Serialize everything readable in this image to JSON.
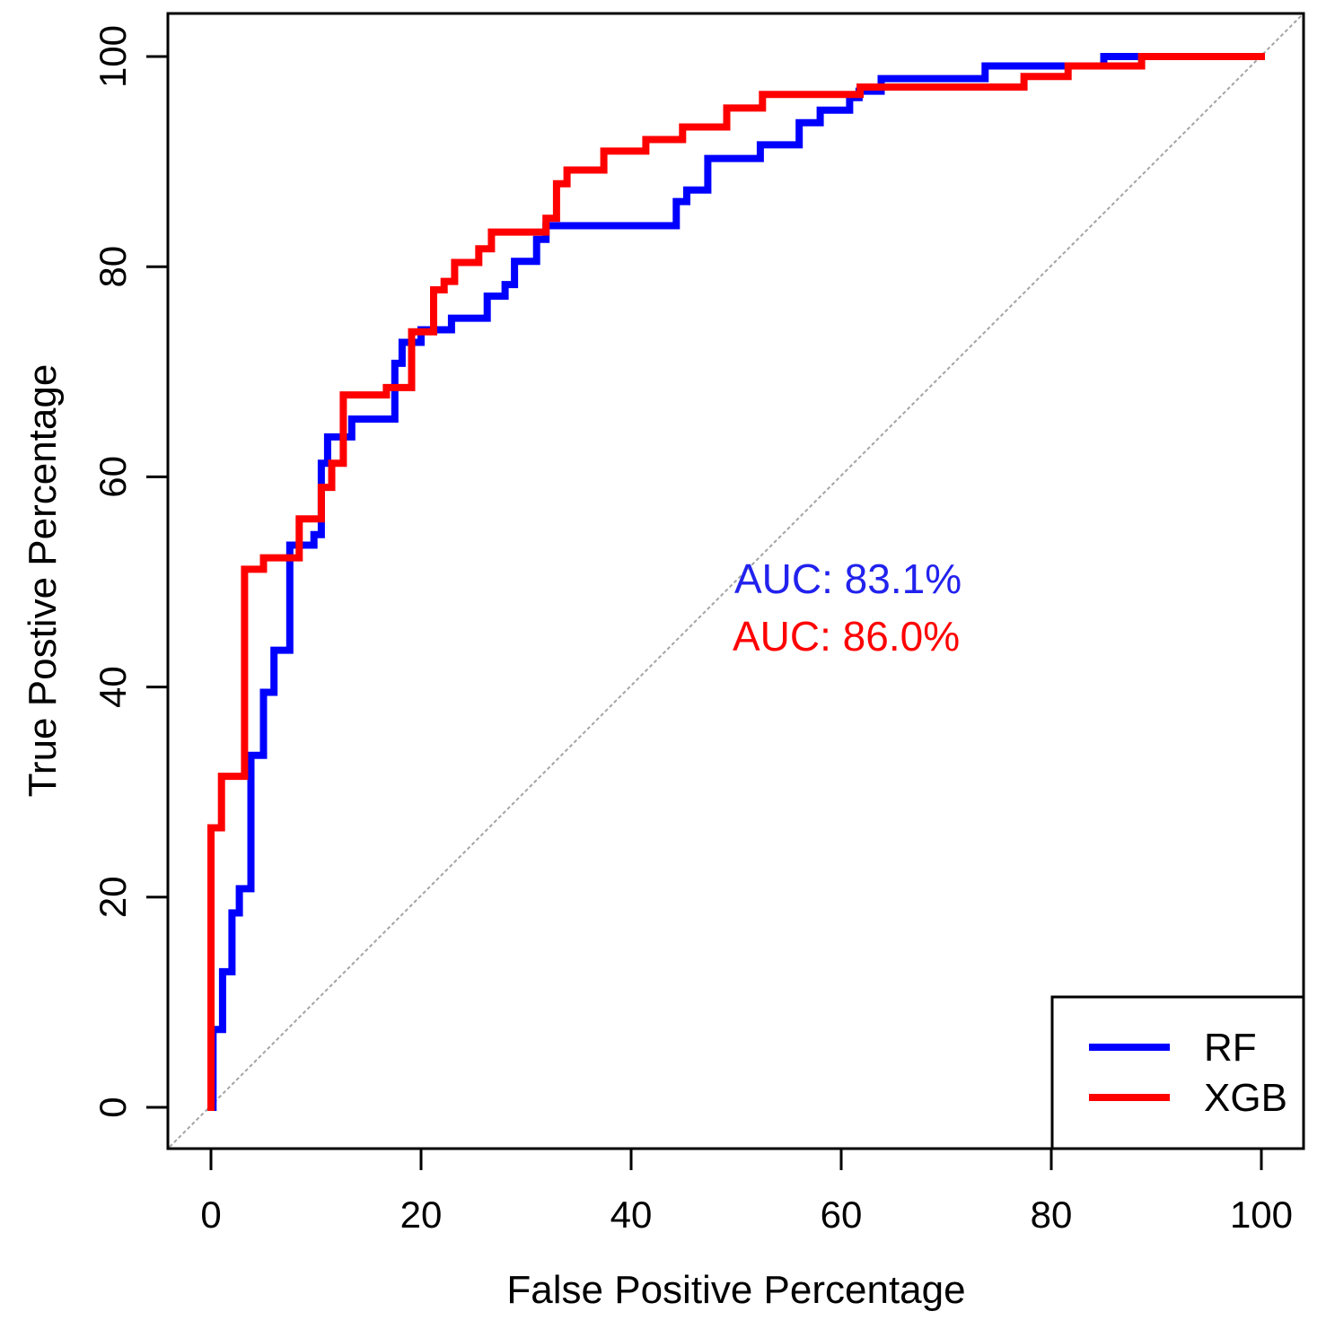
{
  "chart_data": {
    "type": "line",
    "subtype": "roc-step-curves",
    "title": "",
    "xlabel": "False Positive Percentage",
    "ylabel": "True Postive Percentage",
    "xlim": [
      0,
      100
    ],
    "ylim": [
      0,
      100
    ],
    "grid": false,
    "x_ticks": [
      0,
      20,
      40,
      60,
      80,
      100
    ],
    "y_ticks": [
      0,
      20,
      40,
      60,
      80,
      100
    ],
    "diagonal_reference": {
      "from": [
        0,
        0
      ],
      "to": [
        100,
        100
      ],
      "color": "#a3a3a3"
    },
    "annotations": [
      {
        "text": "AUC: 83.1%",
        "series": "RF",
        "color": "#2222ee",
        "x": 50,
        "y": 49
      },
      {
        "text": "AUC: 86.0%",
        "series": "XGB",
        "color": "#ff0000",
        "x": 50,
        "y": 44
      }
    ],
    "legend": {
      "position": "bottom-right",
      "entries": [
        {
          "label": "RF",
          "color": "#0000ff"
        },
        {
          "label": "XGB",
          "color": "#ff0000"
        }
      ]
    },
    "series": [
      {
        "name": "RF",
        "color": "#0000ff",
        "auc_percent": 83.1,
        "points": [
          [
            0.2,
            0
          ],
          [
            0.2,
            7.4
          ],
          [
            1.1,
            7.4
          ],
          [
            1.1,
            12.9
          ],
          [
            2,
            12.9
          ],
          [
            2,
            18.5
          ],
          [
            2.7,
            18.5
          ],
          [
            2.7,
            20.8
          ],
          [
            3.8,
            20.8
          ],
          [
            3.8,
            33.5
          ],
          [
            5,
            33.5
          ],
          [
            5,
            39.5
          ],
          [
            6,
            39.5
          ],
          [
            6,
            43.5
          ],
          [
            7.5,
            43.5
          ],
          [
            7.5,
            53.5
          ],
          [
            9.8,
            53.5
          ],
          [
            9.8,
            54.5
          ],
          [
            10.5,
            54.5
          ],
          [
            10.5,
            61.3
          ],
          [
            11.1,
            61.3
          ],
          [
            11.1,
            63.8
          ],
          [
            13.4,
            63.8
          ],
          [
            13.4,
            65.5
          ],
          [
            17.5,
            65.5
          ],
          [
            17.5,
            70.8
          ],
          [
            18.2,
            70.8
          ],
          [
            18.2,
            72.8
          ],
          [
            20,
            72.8
          ],
          [
            20,
            74
          ],
          [
            22.9,
            74
          ],
          [
            22.9,
            75.1
          ],
          [
            26.3,
            75.1
          ],
          [
            26.3,
            77.2
          ],
          [
            28,
            77.2
          ],
          [
            28,
            78.3
          ],
          [
            28.9,
            78.3
          ],
          [
            28.9,
            80.5
          ],
          [
            31,
            80.5
          ],
          [
            31,
            82.6
          ],
          [
            31.9,
            82.6
          ],
          [
            31.9,
            83.9
          ],
          [
            44.3,
            83.9
          ],
          [
            44.3,
            86.2
          ],
          [
            45.3,
            86.2
          ],
          [
            45.3,
            87.3
          ],
          [
            47.3,
            87.3
          ],
          [
            47.3,
            90.3
          ],
          [
            52.3,
            90.3
          ],
          [
            52.3,
            91.6
          ],
          [
            56,
            91.6
          ],
          [
            56,
            93.7
          ],
          [
            58,
            93.7
          ],
          [
            58,
            94.9
          ],
          [
            60.8,
            94.9
          ],
          [
            60.8,
            96.1
          ],
          [
            61.7,
            96.1
          ],
          [
            61.7,
            96.7
          ],
          [
            63.8,
            96.7
          ],
          [
            63.8,
            97.9
          ],
          [
            73.7,
            97.9
          ],
          [
            73.7,
            99.1
          ],
          [
            85,
            99.1
          ],
          [
            85,
            100
          ],
          [
            100,
            100
          ]
        ]
      },
      {
        "name": "XGB",
        "color": "#ff0000",
        "auc_percent": 86.0,
        "points": [
          [
            0,
            0
          ],
          [
            0,
            26.6
          ],
          [
            1,
            26.6
          ],
          [
            1,
            31.5
          ],
          [
            3.2,
            31.5
          ],
          [
            3.2,
            51.2
          ],
          [
            5,
            51.2
          ],
          [
            5,
            52.3
          ],
          [
            8.4,
            52.3
          ],
          [
            8.4,
            56
          ],
          [
            10.5,
            56
          ],
          [
            10.5,
            59
          ],
          [
            11.5,
            59
          ],
          [
            11.5,
            61.3
          ],
          [
            12.6,
            61.3
          ],
          [
            12.6,
            67.8
          ],
          [
            16.7,
            67.8
          ],
          [
            16.7,
            68.5
          ],
          [
            19.1,
            68.5
          ],
          [
            19.1,
            73.8
          ],
          [
            21.2,
            73.8
          ],
          [
            21.2,
            77.8
          ],
          [
            22.2,
            77.8
          ],
          [
            22.2,
            78.6
          ],
          [
            23.2,
            78.6
          ],
          [
            23.2,
            80.4
          ],
          [
            25.5,
            80.4
          ],
          [
            25.5,
            81.7
          ],
          [
            26.7,
            81.7
          ],
          [
            26.7,
            83.3
          ],
          [
            31.9,
            83.3
          ],
          [
            31.9,
            84.6
          ],
          [
            32.9,
            84.6
          ],
          [
            32.9,
            87.9
          ],
          [
            33.9,
            87.9
          ],
          [
            33.9,
            89.2
          ],
          [
            37.4,
            89.2
          ],
          [
            37.4,
            91
          ],
          [
            41.4,
            91
          ],
          [
            41.4,
            92.1
          ],
          [
            44.9,
            92.1
          ],
          [
            44.9,
            93.3
          ],
          [
            49.1,
            93.3
          ],
          [
            49.1,
            95.1
          ],
          [
            52.5,
            95.1
          ],
          [
            52.5,
            96.4
          ],
          [
            61.8,
            96.4
          ],
          [
            61.8,
            97.1
          ],
          [
            77.4,
            97.1
          ],
          [
            77.4,
            98.1
          ],
          [
            81.6,
            98.1
          ],
          [
            81.6,
            99.1
          ],
          [
            88.6,
            99.1
          ],
          [
            88.6,
            100
          ],
          [
            100,
            100
          ]
        ]
      }
    ]
  }
}
